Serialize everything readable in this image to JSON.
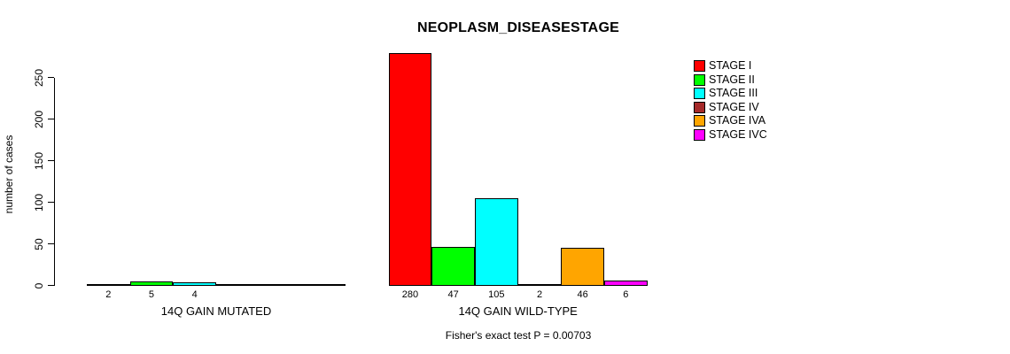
{
  "chart_data": {
    "type": "bar",
    "title": "NEOPLASM_DISEASESTAGE",
    "ylabel": "number of cases",
    "ylim": [
      0,
      280
    ],
    "yticks": [
      0,
      50,
      100,
      150,
      200,
      250
    ],
    "grid": false,
    "legend_position": "right",
    "categories": [
      "14Q GAIN MUTATED",
      "14Q GAIN WILD-TYPE"
    ],
    "series": [
      {
        "name": "STAGE I",
        "color": "#FF0000",
        "values": [
          2,
          280
        ]
      },
      {
        "name": "STAGE II",
        "color": "#00FF00",
        "values": [
          5,
          47
        ]
      },
      {
        "name": "STAGE III",
        "color": "#00FFFF",
        "values": [
          4,
          105
        ]
      },
      {
        "name": "STAGE IV",
        "color": "#A52A2A",
        "values": [
          0,
          2
        ]
      },
      {
        "name": "STAGE IVA",
        "color": "#FFA500",
        "values": [
          0,
          46
        ]
      },
      {
        "name": "STAGE IVC",
        "color": "#FF00FF",
        "values": [
          0,
          6
        ]
      }
    ],
    "annotation": "Fisher's exact test P = 0.00703"
  }
}
